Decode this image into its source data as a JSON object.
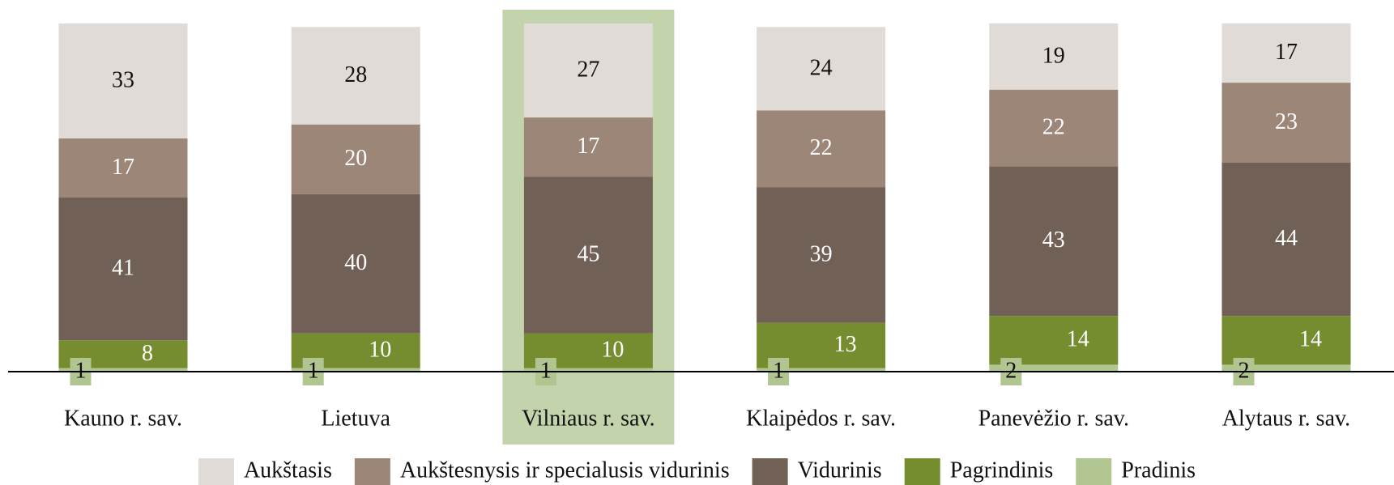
{
  "chart_data": {
    "type": "stacked_bar",
    "categories": [
      "Kauno r. sav.",
      "Lietuva",
      "Vilniaus r. sav.",
      "Klaipėdos r. sav.",
      "Panevėžio r. sav.",
      "Alytaus r. sav."
    ],
    "series": [
      {
        "name": "Aukštasis",
        "color": "#e0dbd6",
        "values": [
          33,
          28,
          27,
          24,
          19,
          17
        ]
      },
      {
        "name": "Aukštesnysis ir specialusis vidurinis",
        "color": "#9c8677",
        "values": [
          17,
          20,
          17,
          22,
          22,
          23
        ]
      },
      {
        "name": "Vidurinis",
        "color": "#716055",
        "values": [
          41,
          40,
          45,
          39,
          43,
          44
        ]
      },
      {
        "name": "Pagrindinis",
        "color": "#758d2f",
        "values": [
          8,
          10,
          10,
          13,
          14,
          14
        ]
      },
      {
        "name": "Pradinis",
        "color": "#b1c590",
        "values": [
          1,
          1,
          1,
          1,
          2,
          2
        ]
      }
    ],
    "highlight": 2,
    "highlight_color": "#c3d3ab"
  }
}
